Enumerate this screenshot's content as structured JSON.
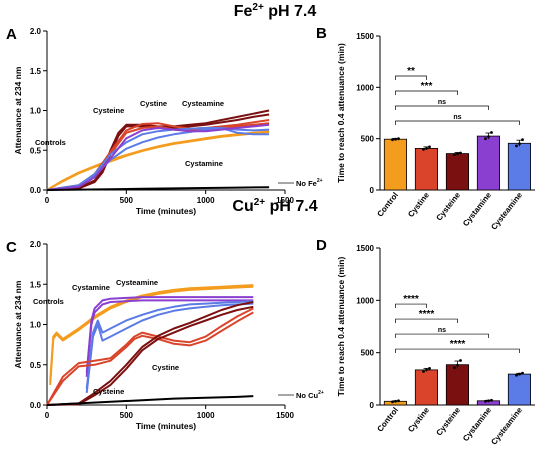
{
  "rows": [
    {
      "heading_base": "Fe",
      "heading_sup": "2+",
      "heading_tail": " pH 7.4"
    },
    {
      "heading_base": "Cu",
      "heading_sup": "2+",
      "heading_tail": " pH 7.4"
    }
  ],
  "chart_data": [
    {
      "panel": "A",
      "type": "line",
      "xlabel": "Time (minutes)",
      "ylabel": "Attenuance at 234 nm",
      "xlim": [
        0,
        1500
      ],
      "ylim": [
        0,
        2.0
      ],
      "xticks": [
        "0",
        "500",
        "1000",
        "1500"
      ],
      "yticks": [
        "0.0",
        "0.5",
        "1.0",
        "1.5",
        "2.0"
      ],
      "annotations": [
        {
          "text": "Controls",
          "color": "#F39C1E"
        },
        {
          "text": "Cysteine",
          "color": "#7B1010"
        },
        {
          "text": "Cystine",
          "color": "#D9442A"
        },
        {
          "text": "Cysteamine",
          "color": "#5B7BE6"
        },
        {
          "text": "Cystamine",
          "color": "#8A3FD0"
        },
        {
          "text_base": "No Fe",
          "text_sup": "2+",
          "color": "#000000"
        }
      ],
      "series": [
        {
          "name": "Controls",
          "color": "#F39C1E",
          "x": [
            0,
            100,
            200,
            300,
            400,
            500,
            600,
            700,
            800,
            900,
            1000,
            1100,
            1200,
            1300,
            1400
          ],
          "y": [
            0.0,
            0.12,
            0.22,
            0.3,
            0.38,
            0.44,
            0.5,
            0.55,
            0.59,
            0.62,
            0.65,
            0.68,
            0.7,
            0.72,
            0.74
          ]
        },
        {
          "name": "Controls",
          "color": "#F39C1E",
          "x": [
            0,
            100,
            200,
            300,
            400,
            500,
            600,
            700,
            800,
            900,
            1000,
            1100,
            1200,
            1300,
            1400
          ],
          "y": [
            0.0,
            0.11,
            0.21,
            0.29,
            0.36,
            0.43,
            0.49,
            0.54,
            0.58,
            0.61,
            0.64,
            0.67,
            0.69,
            0.71,
            0.73
          ]
        },
        {
          "name": "Cysteine",
          "color": "#7B1010",
          "x": [
            0,
            200,
            300,
            350,
            400,
            450,
            500,
            600,
            700,
            800,
            900,
            1000,
            1100,
            1200,
            1300,
            1400
          ],
          "y": [
            0.0,
            0.03,
            0.12,
            0.25,
            0.5,
            0.72,
            0.82,
            0.82,
            0.8,
            0.8,
            0.82,
            0.84,
            0.88,
            0.92,
            0.96,
            1.0
          ]
        },
        {
          "name": "Cysteine",
          "color": "#7B1010",
          "x": [
            0,
            200,
            300,
            350,
            400,
            450,
            500,
            600,
            700,
            800,
            900,
            1000,
            1100,
            1200,
            1300,
            1400
          ],
          "y": [
            0.0,
            0.02,
            0.1,
            0.22,
            0.45,
            0.68,
            0.8,
            0.8,
            0.78,
            0.78,
            0.8,
            0.82,
            0.85,
            0.88,
            0.92,
            0.95
          ]
        },
        {
          "name": "Cystine",
          "color": "#D9442A",
          "x": [
            0,
            200,
            300,
            400,
            500,
            600,
            700,
            800,
            900,
            1000,
            1100,
            1200,
            1300,
            1400
          ],
          "y": [
            0.0,
            0.06,
            0.2,
            0.48,
            0.75,
            0.83,
            0.84,
            0.8,
            0.77,
            0.78,
            0.8,
            0.82,
            0.85,
            0.88
          ]
        },
        {
          "name": "Cystine",
          "color": "#D9442A",
          "x": [
            0,
            200,
            300,
            400,
            500,
            600,
            700,
            800,
            900,
            1000,
            1100,
            1200,
            1300,
            1400
          ],
          "y": [
            0.0,
            0.05,
            0.18,
            0.45,
            0.72,
            0.78,
            0.8,
            0.76,
            0.75,
            0.76,
            0.78,
            0.8,
            0.82,
            0.84
          ]
        },
        {
          "name": "Cysteamine",
          "color": "#5B7BE6",
          "x": [
            0,
            200,
            300,
            400,
            500,
            600,
            700,
            800,
            900,
            1000,
            1100,
            1200,
            1300,
            1400
          ],
          "y": [
            0.0,
            0.05,
            0.18,
            0.38,
            0.52,
            0.6,
            0.66,
            0.7,
            0.73,
            0.76,
            0.78,
            0.72,
            0.7,
            0.7
          ]
        },
        {
          "name": "Cysteamine",
          "color": "#5B7BE6",
          "x": [
            0,
            200,
            300,
            400,
            500,
            600,
            700,
            800,
            900,
            1000,
            1100,
            1200,
            1300,
            1400
          ],
          "y": [
            0.0,
            0.06,
            0.2,
            0.45,
            0.6,
            0.7,
            0.74,
            0.76,
            0.77,
            0.78,
            0.78,
            0.76,
            0.75,
            0.76
          ]
        },
        {
          "name": "Cystamine",
          "color": "#8A3FD0",
          "x": [
            0,
            200,
            300,
            400,
            500,
            600,
            700,
            800,
            900,
            1000,
            1100,
            1200,
            1300,
            1400
          ],
          "y": [
            0.0,
            0.04,
            0.16,
            0.4,
            0.65,
            0.75,
            0.78,
            0.76,
            0.74,
            0.74,
            0.76,
            0.78,
            0.8,
            0.82
          ]
        },
        {
          "name": "No Fe2+",
          "color": "#000000",
          "x": [
            0,
            200,
            400,
            600,
            800,
            1000,
            1200,
            1400
          ],
          "y": [
            0.0,
            0.005,
            0.01,
            0.015,
            0.02,
            0.025,
            0.03,
            0.035
          ]
        }
      ]
    },
    {
      "panel": "B",
      "type": "bar",
      "ylabel": "Time to reach 0.4 attenuance (min)",
      "ylim": [
        0,
        1500
      ],
      "yticks": [
        "0",
        "500",
        "1000",
        "1500"
      ],
      "categories": [
        "Control",
        "Cystine",
        "Cysteine",
        "Cystamine",
        "Cysteamine"
      ],
      "values": [
        495,
        405,
        355,
        525,
        455
      ],
      "colors": [
        "#F39C1E",
        "#D9442A",
        "#7B1010",
        "#8A3FD0",
        "#5B7BE6"
      ],
      "errors": [
        8,
        15,
        10,
        30,
        30
      ],
      "points": [
        [
          490,
          495,
          500
        ],
        [
          395,
          405,
          420
        ],
        [
          345,
          355,
          360
        ],
        [
          500,
          520,
          560
        ],
        [
          430,
          450,
          490
        ]
      ],
      "significance": [
        {
          "to": 1,
          "label": "**"
        },
        {
          "to": 2,
          "label": "***"
        },
        {
          "to": 3,
          "label": "ns"
        },
        {
          "to": 4,
          "label": "ns"
        }
      ]
    },
    {
      "panel": "C",
      "type": "line",
      "xlabel": "Time (minutes)",
      "ylabel": "Attenuance at 234 nm",
      "xlim": [
        0,
        1500
      ],
      "ylim": [
        0,
        2.0
      ],
      "xticks": [
        "0",
        "500",
        "1000",
        "1500"
      ],
      "yticks": [
        "0.0",
        "0.5",
        "1.0",
        "1.5",
        "2.0"
      ],
      "annotations": [
        {
          "text": "Controls",
          "color": "#F39C1E"
        },
        {
          "text": "Cystamine",
          "color": "#8A3FD0"
        },
        {
          "text": "Cysteamine",
          "color": "#5B7BE6"
        },
        {
          "text": "Cystine",
          "color": "#D9442A"
        },
        {
          "text": "Cysteine",
          "color": "#7B1010"
        },
        {
          "text_base": "No Cu",
          "text_sup": "2+",
          "color": "#000000"
        }
      ],
      "series": [
        {
          "name": "Controls",
          "color": "#F39C1E",
          "x": [
            20,
            40,
            60,
            100,
            200,
            300,
            400,
            500,
            600,
            700,
            800,
            900,
            1000,
            1100,
            1200,
            1300
          ],
          "y": [
            0.3,
            0.85,
            0.9,
            0.82,
            0.95,
            1.1,
            1.22,
            1.3,
            1.36,
            1.4,
            1.43,
            1.45,
            1.46,
            1.47,
            1.48,
            1.49
          ]
        },
        {
          "name": "Controls",
          "color": "#F39C1E",
          "x": [
            20,
            40,
            60,
            100,
            200,
            300,
            400,
            500,
            600,
            700,
            800,
            900,
            1000,
            1100,
            1200,
            1300
          ],
          "y": [
            0.25,
            0.82,
            0.88,
            0.8,
            0.93,
            1.08,
            1.2,
            1.28,
            1.34,
            1.38,
            1.41,
            1.43,
            1.44,
            1.45,
            1.46,
            1.47
          ]
        },
        {
          "name": "Cystamine",
          "color": "#8A3FD0",
          "x": [
            250,
            280,
            300,
            350,
            400,
            500,
            600,
            700,
            800,
            900,
            1000,
            1100,
            1200,
            1300
          ],
          "y": [
            0.4,
            1.05,
            1.2,
            1.3,
            1.32,
            1.33,
            1.34,
            1.34,
            1.34,
            1.34,
            1.34,
            1.34,
            1.34,
            1.34
          ]
        },
        {
          "name": "Cystamine",
          "color": "#8A3FD0",
          "x": [
            250,
            280,
            300,
            350,
            400,
            500,
            600,
            700,
            800,
            900,
            1000,
            1100,
            1200,
            1300
          ],
          "y": [
            0.35,
            1.0,
            1.15,
            1.25,
            1.28,
            1.29,
            1.3,
            1.3,
            1.3,
            1.3,
            1.3,
            1.3,
            1.3,
            1.3
          ]
        },
        {
          "name": "Cysteamine",
          "color": "#5B7BE6",
          "x": [
            250,
            290,
            320,
            350,
            400,
            500,
            600,
            700,
            800,
            900,
            1000,
            1100,
            1200,
            1300
          ],
          "y": [
            0.2,
            0.9,
            1.05,
            0.9,
            0.95,
            1.05,
            1.12,
            1.18,
            1.22,
            1.25,
            1.26,
            1.27,
            1.28,
            1.29
          ]
        },
        {
          "name": "Cysteamine",
          "color": "#5B7BE6",
          "x": [
            250,
            290,
            320,
            350,
            400,
            500,
            600,
            700,
            800,
            900,
            1000,
            1100,
            1200,
            1300
          ],
          "y": [
            0.15,
            0.85,
            1.0,
            0.8,
            0.85,
            0.95,
            1.05,
            1.12,
            1.17,
            1.2,
            1.22,
            1.24,
            1.25,
            1.26
          ]
        },
        {
          "name": "Cystine",
          "color": "#D9442A",
          "x": [
            0,
            100,
            200,
            300,
            400,
            500,
            550,
            600,
            700,
            800,
            900,
            1000,
            1100,
            1200,
            1300
          ],
          "y": [
            0.0,
            0.35,
            0.52,
            0.55,
            0.58,
            0.75,
            0.85,
            0.9,
            0.85,
            0.8,
            0.78,
            0.85,
            0.98,
            1.1,
            1.2
          ]
        },
        {
          "name": "Cystine",
          "color": "#D9442A",
          "x": [
            0,
            100,
            200,
            300,
            400,
            500,
            550,
            600,
            700,
            800,
            900,
            1000,
            1100,
            1200,
            1300
          ],
          "y": [
            0.0,
            0.3,
            0.48,
            0.5,
            0.55,
            0.72,
            0.82,
            0.86,
            0.82,
            0.76,
            0.74,
            0.8,
            0.92,
            1.04,
            1.15
          ]
        },
        {
          "name": "Cysteine",
          "color": "#7B1010",
          "x": [
            0,
            200,
            300,
            400,
            500,
            600,
            700,
            800,
            900,
            1000,
            1100,
            1200,
            1300
          ],
          "y": [
            0.0,
            0.02,
            0.15,
            0.3,
            0.5,
            0.72,
            0.86,
            0.95,
            1.02,
            1.1,
            1.18,
            1.24,
            1.28
          ]
        },
        {
          "name": "Cysteine",
          "color": "#7B1010",
          "x": [
            0,
            200,
            300,
            400,
            500,
            600,
            700,
            800,
            900,
            1000,
            1100,
            1200,
            1300
          ],
          "y": [
            0.0,
            0.01,
            0.12,
            0.25,
            0.45,
            0.68,
            0.82,
            0.9,
            0.98,
            1.05,
            1.12,
            1.18,
            1.22
          ]
        },
        {
          "name": "No Cu2+",
          "color": "#000000",
          "x": [
            0,
            200,
            400,
            600,
            800,
            1000,
            1200,
            1300
          ],
          "y": [
            0.0,
            0.02,
            0.04,
            0.06,
            0.08,
            0.09,
            0.1,
            0.11
          ]
        }
      ]
    },
    {
      "panel": "D",
      "type": "bar",
      "ylabel": "Time to reach 0.4 attenuance (min)",
      "ylim": [
        0,
        1500
      ],
      "yticks": [
        "0",
        "500",
        "1000",
        "1500"
      ],
      "categories": [
        "Control",
        "Cystine",
        "Cysteine",
        "Cystamine",
        "Cysteamine"
      ],
      "values": [
        35,
        335,
        385,
        40,
        295
      ],
      "colors": [
        "#F39C1E",
        "#D9442A",
        "#7B1010",
        "#8A3FD0",
        "#5B7BE6"
      ],
      "errors": [
        5,
        15,
        35,
        5,
        8
      ],
      "points": [
        [
          30,
          35,
          40
        ],
        [
          320,
          335,
          350
        ],
        [
          355,
          380,
          425
        ],
        [
          35,
          40,
          45
        ],
        [
          285,
          295,
          305
        ]
      ],
      "significance": [
        {
          "to": 1,
          "label": "****"
        },
        {
          "to": 2,
          "label": "****"
        },
        {
          "to": 3,
          "label": "ns"
        },
        {
          "to": 4,
          "label": "****"
        }
      ]
    }
  ]
}
